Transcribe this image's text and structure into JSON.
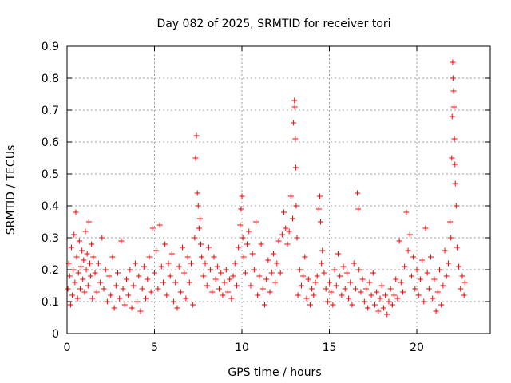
{
  "chart_data": {
    "type": "scatter",
    "title": "Day 082 of 2025, SRMTID for receiver tori",
    "xlabel": "GPS time / hours",
    "ylabel": "SRMTID / TECUs",
    "xlim": [
      0,
      24.2
    ],
    "ylim": [
      0,
      0.9
    ],
    "xticks": [
      0,
      5,
      10,
      15,
      20
    ],
    "xtick_labels": [
      "0",
      "5",
      "10",
      "15",
      "20"
    ],
    "yticks": [
      0,
      0.1,
      0.2,
      0.3,
      0.4,
      0.5,
      0.6,
      0.7,
      0.8,
      0.9
    ],
    "ytick_labels": [
      "0",
      "0.1",
      "0.2",
      "0.3",
      "0.4",
      "0.5",
      "0.6",
      "0.7",
      "0.8",
      "0.9"
    ],
    "grid": true,
    "marker": "plus",
    "color": "#ff0000",
    "series": [
      {
        "name": "SRMTID",
        "points": [
          [
            0.05,
            0.14
          ],
          [
            0.1,
            0.22
          ],
          [
            0.15,
            0.18
          ],
          [
            0.2,
            0.09
          ],
          [
            0.25,
            0.27
          ],
          [
            0.3,
            0.12
          ],
          [
            0.35,
            0.2
          ],
          [
            0.4,
            0.31
          ],
          [
            0.45,
            0.16
          ],
          [
            0.5,
            0.38
          ],
          [
            0.55,
            0.24
          ],
          [
            0.6,
            0.11
          ],
          [
            0.65,
            0.19
          ],
          [
            0.7,
            0.29
          ],
          [
            0.75,
            0.14
          ],
          [
            0.8,
            0.21
          ],
          [
            0.85,
            0.26
          ],
          [
            0.9,
            0.17
          ],
          [
            0.95,
            0.23
          ],
          [
            1.0,
            0.13
          ],
          [
            1.05,
            0.32
          ],
          [
            1.1,
            0.2
          ],
          [
            1.15,
            0.25
          ],
          [
            1.2,
            0.15
          ],
          [
            1.25,
            0.35
          ],
          [
            1.3,
            0.22
          ],
          [
            1.35,
            0.18
          ],
          [
            1.4,
            0.28
          ],
          [
            1.45,
            0.11
          ],
          [
            1.5,
            0.24
          ],
          [
            1.6,
            0.19
          ],
          [
            1.7,
            0.13
          ],
          [
            1.8,
            0.22
          ],
          [
            1.9,
            0.16
          ],
          [
            2.0,
            0.3
          ],
          [
            2.1,
            0.14
          ],
          [
            2.2,
            0.2
          ],
          [
            2.3,
            0.1
          ],
          [
            2.4,
            0.18
          ],
          [
            2.5,
            0.12
          ],
          [
            2.6,
            0.24
          ],
          [
            2.7,
            0.08
          ],
          [
            2.8,
            0.15
          ],
          [
            2.9,
            0.19
          ],
          [
            3.0,
            0.11
          ],
          [
            3.1,
            0.29
          ],
          [
            3.2,
            0.14
          ],
          [
            3.3,
            0.09
          ],
          [
            3.4,
            0.17
          ],
          [
            3.5,
            0.12
          ],
          [
            3.6,
            0.2
          ],
          [
            3.7,
            0.08
          ],
          [
            3.8,
            0.15
          ],
          [
            3.9,
            0.22
          ],
          [
            4.0,
            0.1
          ],
          [
            4.1,
            0.18
          ],
          [
            4.2,
            0.07
          ],
          [
            4.3,
            0.14
          ],
          [
            4.4,
            0.21
          ],
          [
            4.5,
            0.11
          ],
          [
            4.6,
            0.17
          ],
          [
            4.7,
            0.24
          ],
          [
            4.8,
            0.13
          ],
          [
            4.9,
            0.33
          ],
          [
            5.0,
            0.19
          ],
          [
            5.1,
            0.26
          ],
          [
            5.2,
            0.14
          ],
          [
            5.3,
            0.34
          ],
          [
            5.4,
            0.21
          ],
          [
            5.5,
            0.16
          ],
          [
            5.6,
            0.28
          ],
          [
            5.7,
            0.12
          ],
          [
            5.8,
            0.22
          ],
          [
            5.9,
            0.18
          ],
          [
            6.0,
            0.25
          ],
          [
            6.1,
            0.1
          ],
          [
            6.2,
            0.16
          ],
          [
            6.3,
            0.08
          ],
          [
            6.4,
            0.21
          ],
          [
            6.5,
            0.13
          ],
          [
            6.6,
            0.27
          ],
          [
            6.7,
            0.19
          ],
          [
            6.8,
            0.11
          ],
          [
            6.9,
            0.24
          ],
          [
            7.0,
            0.16
          ],
          [
            7.1,
            0.22
          ],
          [
            7.2,
            0.09
          ],
          [
            7.3,
            0.3
          ],
          [
            7.35,
            0.55
          ],
          [
            7.4,
            0.62
          ],
          [
            7.45,
            0.44
          ],
          [
            7.5,
            0.4
          ],
          [
            7.55,
            0.33
          ],
          [
            7.6,
            0.36
          ],
          [
            7.65,
            0.28
          ],
          [
            7.7,
            0.24
          ],
          [
            7.8,
            0.18
          ],
          [
            7.9,
            0.22
          ],
          [
            8.0,
            0.15
          ],
          [
            8.1,
            0.27
          ],
          [
            8.2,
            0.2
          ],
          [
            8.3,
            0.13
          ],
          [
            8.4,
            0.24
          ],
          [
            8.5,
            0.17
          ],
          [
            8.6,
            0.21
          ],
          [
            8.7,
            0.14
          ],
          [
            8.8,
            0.19
          ],
          [
            8.9,
            0.12
          ],
          [
            9.0,
            0.16
          ],
          [
            9.1,
            0.2
          ],
          [
            9.2,
            0.13
          ],
          [
            9.3,
            0.17
          ],
          [
            9.4,
            0.11
          ],
          [
            9.5,
            0.18
          ],
          [
            9.6,
            0.22
          ],
          [
            9.7,
            0.15
          ],
          [
            9.8,
            0.27
          ],
          [
            9.9,
            0.34
          ],
          [
            9.95,
            0.39
          ],
          [
            10.0,
            0.43
          ],
          [
            10.05,
            0.3
          ],
          [
            10.1,
            0.24
          ],
          [
            10.2,
            0.19
          ],
          [
            10.3,
            0.28
          ],
          [
            10.4,
            0.32
          ],
          [
            10.5,
            0.15
          ],
          [
            10.6,
            0.25
          ],
          [
            10.7,
            0.2
          ],
          [
            10.8,
            0.35
          ],
          [
            10.9,
            0.12
          ],
          [
            11.0,
            0.18
          ],
          [
            11.1,
            0.28
          ],
          [
            11.2,
            0.14
          ],
          [
            11.3,
            0.09
          ],
          [
            11.4,
            0.17
          ],
          [
            11.5,
            0.23
          ],
          [
            11.6,
            0.13
          ],
          [
            11.7,
            0.19
          ],
          [
            11.8,
            0.25
          ],
          [
            11.9,
            0.16
          ],
          [
            12.0,
            0.22
          ],
          [
            12.1,
            0.29
          ],
          [
            12.2,
            0.19
          ],
          [
            12.3,
            0.31
          ],
          [
            12.4,
            0.38
          ],
          [
            12.5,
            0.33
          ],
          [
            12.6,
            0.28
          ],
          [
            12.7,
            0.32
          ],
          [
            12.8,
            0.43
          ],
          [
            12.9,
            0.36
          ],
          [
            12.95,
            0.66
          ],
          [
            13.0,
            0.73
          ],
          [
            13.02,
            0.71
          ],
          [
            13.05,
            0.61
          ],
          [
            13.08,
            0.52
          ],
          [
            13.1,
            0.4
          ],
          [
            13.15,
            0.3
          ],
          [
            13.2,
            0.12
          ],
          [
            13.3,
            0.2
          ],
          [
            13.4,
            0.15
          ],
          [
            13.5,
            0.18
          ],
          [
            13.6,
            0.24
          ],
          [
            13.7,
            0.11
          ],
          [
            13.8,
            0.17
          ],
          [
            13.9,
            0.09
          ],
          [
            14.0,
            0.14
          ],
          [
            14.1,
            0.12
          ],
          [
            14.2,
            0.16
          ],
          [
            14.3,
            0.18
          ],
          [
            14.4,
            0.39
          ],
          [
            14.45,
            0.43
          ],
          [
            14.5,
            0.35
          ],
          [
            14.55,
            0.22
          ],
          [
            14.6,
            0.26
          ],
          [
            14.7,
            0.19
          ],
          [
            14.8,
            0.14
          ],
          [
            14.9,
            0.1
          ],
          [
            15.0,
            0.16
          ],
          [
            15.1,
            0.13
          ],
          [
            15.2,
            0.09
          ],
          [
            15.3,
            0.2
          ],
          [
            15.4,
            0.15
          ],
          [
            15.5,
            0.25
          ],
          [
            15.6,
            0.18
          ],
          [
            15.7,
            0.12
          ],
          [
            15.8,
            0.21
          ],
          [
            15.9,
            0.14
          ],
          [
            16.0,
            0.19
          ],
          [
            16.1,
            0.11
          ],
          [
            16.2,
            0.16
          ],
          [
            16.3,
            0.09
          ],
          [
            16.4,
            0.22
          ],
          [
            16.5,
            0.14
          ],
          [
            16.6,
            0.44
          ],
          [
            16.65,
            0.39
          ],
          [
            16.7,
            0.2
          ],
          [
            16.8,
            0.13
          ],
          [
            16.9,
            0.17
          ],
          [
            17.0,
            0.1
          ],
          [
            17.1,
            0.14
          ],
          [
            17.2,
            0.08
          ],
          [
            17.3,
            0.16
          ],
          [
            17.4,
            0.12
          ],
          [
            17.5,
            0.19
          ],
          [
            17.6,
            0.09
          ],
          [
            17.7,
            0.13
          ],
          [
            17.8,
            0.07
          ],
          [
            17.9,
            0.11
          ],
          [
            18.0,
            0.15
          ],
          [
            18.1,
            0.08
          ],
          [
            18.2,
            0.12
          ],
          [
            18.3,
            0.06
          ],
          [
            18.4,
            0.1
          ],
          [
            18.5,
            0.14
          ],
          [
            18.6,
            0.09
          ],
          [
            18.7,
            0.12
          ],
          [
            18.8,
            0.17
          ],
          [
            18.9,
            0.11
          ],
          [
            19.0,
            0.29
          ],
          [
            19.1,
            0.16
          ],
          [
            19.2,
            0.13
          ],
          [
            19.3,
            0.21
          ],
          [
            19.4,
            0.38
          ],
          [
            19.5,
            0.26
          ],
          [
            19.6,
            0.31
          ],
          [
            19.7,
            0.18
          ],
          [
            19.8,
            0.24
          ],
          [
            19.9,
            0.14
          ],
          [
            20.0,
            0.2
          ],
          [
            20.1,
            0.12
          ],
          [
            20.2,
            0.17
          ],
          [
            20.3,
            0.23
          ],
          [
            20.4,
            0.1
          ],
          [
            20.5,
            0.33
          ],
          [
            20.6,
            0.19
          ],
          [
            20.7,
            0.14
          ],
          [
            20.8,
            0.24
          ],
          [
            20.9,
            0.11
          ],
          [
            21.0,
            0.17
          ],
          [
            21.1,
            0.07
          ],
          [
            21.2,
            0.13
          ],
          [
            21.3,
            0.2
          ],
          [
            21.4,
            0.09
          ],
          [
            21.5,
            0.15
          ],
          [
            21.6,
            0.26
          ],
          [
            21.7,
            0.18
          ],
          [
            21.8,
            0.22
          ],
          [
            21.9,
            0.35
          ],
          [
            21.95,
            0.3
          ],
          [
            22.0,
            0.55
          ],
          [
            22.02,
            0.68
          ],
          [
            22.05,
            0.85
          ],
          [
            22.07,
            0.8
          ],
          [
            22.1,
            0.76
          ],
          [
            22.12,
            0.71
          ],
          [
            22.15,
            0.61
          ],
          [
            22.18,
            0.53
          ],
          [
            22.2,
            0.47
          ],
          [
            22.25,
            0.4
          ],
          [
            22.3,
            0.27
          ],
          [
            22.4,
            0.21
          ],
          [
            22.5,
            0.14
          ],
          [
            22.6,
            0.18
          ],
          [
            22.7,
            0.12
          ],
          [
            22.75,
            0.16
          ]
        ]
      }
    ]
  }
}
